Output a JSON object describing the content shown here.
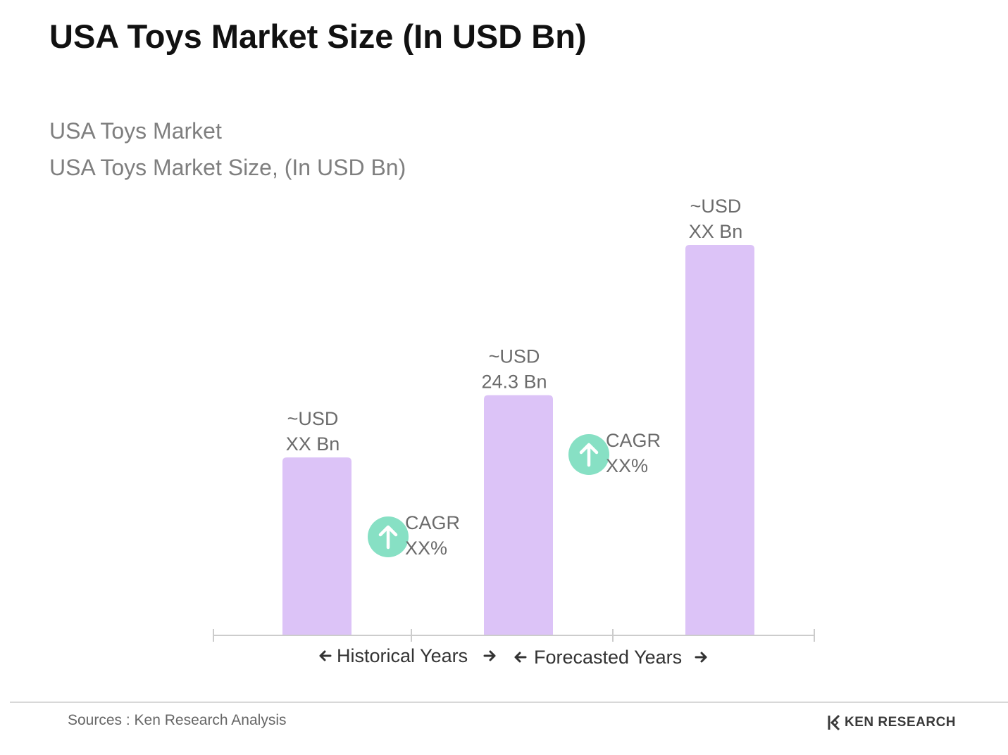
{
  "header": {
    "title": "USA Toys Market Size (In USD Bn)",
    "subtitle_line1": "USA Toys Market",
    "subtitle_line2": "USA Toys Market Size, (In USD Bn)"
  },
  "chart_data": {
    "type": "bar",
    "bar_color": "#dcc3f7",
    "badge_color": "#87e0c4",
    "axis_color": "#cccccc",
    "label_color": "#6b6b6b",
    "ylim": [
      0,
      40
    ],
    "categories": [
      "",
      "",
      ""
    ],
    "values": [
      18,
      24.3,
      39.5
    ],
    "value_labels": [
      [
        "~USD",
        "XX Bn"
      ],
      [
        "~USD",
        "24.3 Bn"
      ],
      [
        "~USD",
        "XX Bn"
      ]
    ],
    "cagr_annotations": [
      {
        "line1": "CAGR",
        "line2": "XX%"
      },
      {
        "line1": "CAGR",
        "line2": "XX%"
      }
    ],
    "period_labels": [
      "Historical Years",
      "Forecasted Years"
    ]
  },
  "footer": {
    "sources": "Sources : Ken Research Analysis",
    "brand": "KEN RESEARCH",
    "brand_icon": "ken-research-logo-icon"
  }
}
